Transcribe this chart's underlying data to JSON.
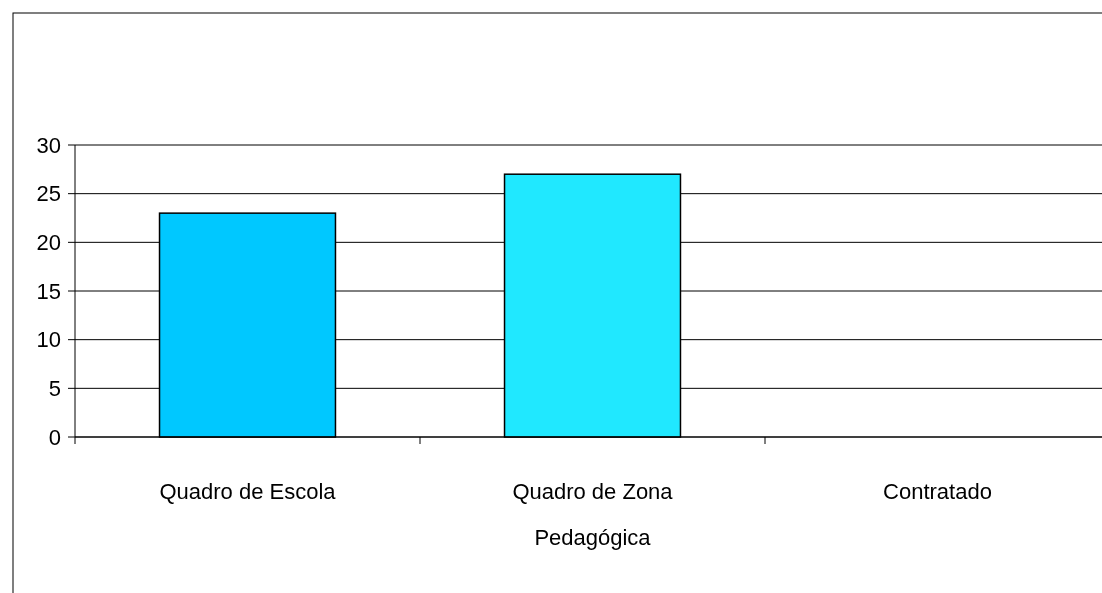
{
  "chart_data": {
    "type": "bar",
    "categories": [
      "Quadro de Escola",
      "Quadro de Zona Pedagógica",
      "Contratado"
    ],
    "values": [
      23,
      27,
      0
    ],
    "colors": [
      "#00c8ff",
      "#20e8ff",
      "#00c8ff"
    ],
    "ylim": [
      0,
      30
    ],
    "yticks": [
      0,
      5,
      10,
      15,
      20,
      25,
      30
    ],
    "grid": "y"
  }
}
